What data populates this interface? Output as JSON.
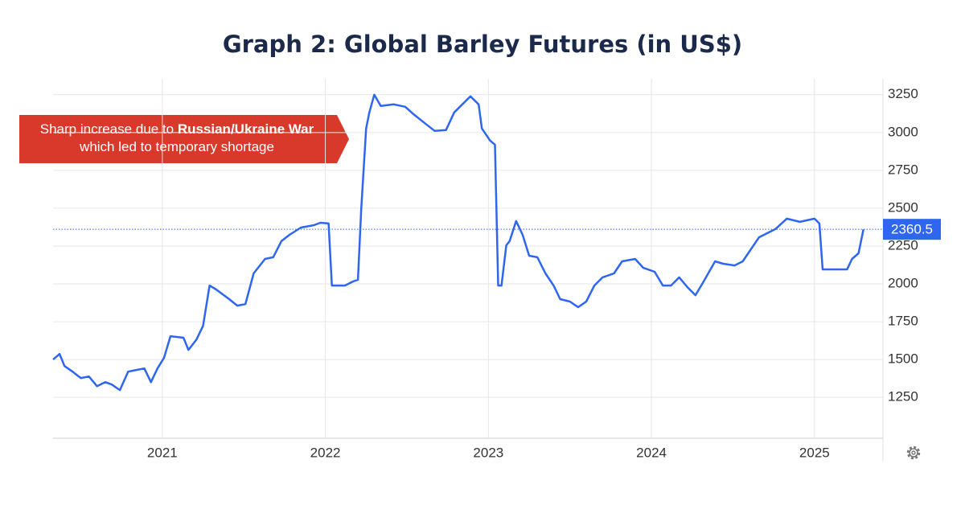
{
  "chart_data": {
    "type": "line",
    "title": "Graph 2: Global Barley Futures (in US$)",
    "annotation": [
      "Sharp increase due to ",
      "Russian/Ukraine War",
      " which led to temporary shortage"
    ],
    "color": "#2f66f0",
    "grid": true,
    "x": [
      2020.33,
      2020.37,
      2020.4,
      2020.45,
      2020.5,
      2020.55,
      2020.6,
      2020.65,
      2020.69,
      2020.74,
      2020.79,
      2020.84,
      2020.89,
      2020.93,
      2020.97,
      2021.01,
      2021.05,
      2021.13,
      2021.16,
      2021.21,
      2021.25,
      2021.29,
      2021.33,
      2021.41,
      2021.46,
      2021.51,
      2021.56,
      2021.63,
      2021.68,
      2021.73,
      2021.78,
      2021.85,
      2021.93,
      2021.97,
      2022.02,
      2022.04,
      2022.12,
      2022.17,
      2022.2,
      2022.22,
      2022.25,
      2022.27,
      2022.3,
      2022.34,
      2022.42,
      2022.49,
      2022.54,
      2022.62,
      2022.67,
      2022.74,
      2022.79,
      2022.84,
      2022.89,
      2022.94,
      2022.96,
      2023.01,
      2023.04,
      2023.06,
      2023.08,
      2023.11,
      2023.13,
      2023.17,
      2023.21,
      2023.25,
      2023.3,
      2023.35,
      2023.4,
      2023.44,
      2023.5,
      2023.55,
      2023.6,
      2023.65,
      2023.7,
      2023.77,
      2023.82,
      2023.9,
      2023.95,
      2024.02,
      2024.07,
      2024.12,
      2024.17,
      2024.22,
      2024.27,
      2024.32,
      2024.39,
      2024.44,
      2024.51,
      2024.56,
      2024.61,
      2024.66,
      2024.71,
      2024.76,
      2024.83,
      2024.91,
      2025.0,
      2025.03,
      2025.05,
      2025.13,
      2025.2,
      2025.23,
      2025.27,
      2025.3
    ],
    "values": [
      1500,
      1537,
      1457,
      1420,
      1378,
      1388,
      1324,
      1351,
      1335,
      1298,
      1420,
      1431,
      1441,
      1351,
      1441,
      1511,
      1654,
      1644,
      1564,
      1633,
      1723,
      1989,
      1963,
      1899,
      1856,
      1867,
      2069,
      2165,
      2176,
      2282,
      2324,
      2372,
      2388,
      2404,
      2399,
      1989,
      1989,
      2016,
      2027,
      2495,
      3027,
      3133,
      3250,
      3176,
      3186,
      3170,
      3122,
      3053,
      3011,
      3016,
      3133,
      3186,
      3239,
      3186,
      3027,
      2947,
      2920,
      1989,
      1989,
      2255,
      2282,
      2415,
      2324,
      2186,
      2176,
      2069,
      1989,
      1899,
      1883,
      1846,
      1883,
      1989,
      2043,
      2069,
      2149,
      2165,
      2106,
      2080,
      1989,
      1989,
      2043,
      1979,
      1925,
      2016,
      2149,
      2133,
      2122,
      2149,
      2229,
      2308,
      2335,
      2362,
      2431,
      2410,
      2431,
      2399,
      2096,
      2096,
      2096,
      2165,
      2202,
      2360.5
    ],
    "xlim": [
      2020.33,
      2025.42
    ],
    "xticks": [
      2021,
      2022,
      2023,
      2024,
      2025
    ],
    "ylim": [
      980,
      3355
    ],
    "yticks": [
      1250,
      1500,
      1750,
      2000,
      2250,
      2500,
      2750,
      3000,
      3250
    ]
  }
}
